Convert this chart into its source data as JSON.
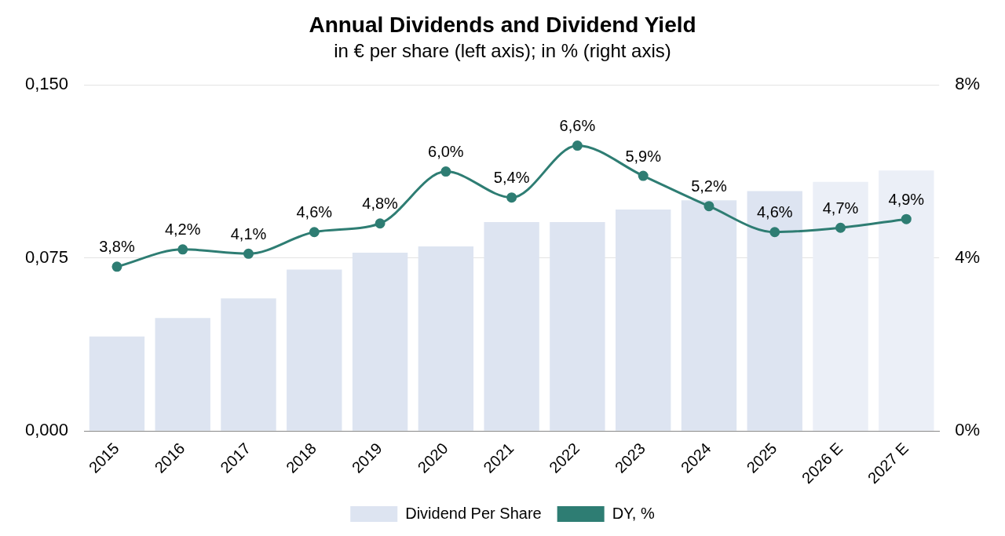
{
  "chart_data": {
    "type": "bar",
    "title": "Annual Dividends and Dividend Yield",
    "subtitle": "in € per share (left axis); in % (right axis)",
    "categories": [
      "2015",
      "2016",
      "2017",
      "2018",
      "2019",
      "2020",
      "2021",
      "2022",
      "2023",
      "2024",
      "2025",
      "2026 E",
      "2027 E"
    ],
    "series": [
      {
        "name": "Dividend Per Share",
        "color": "#dde4f1",
        "colors": [
          "#dde4f1",
          "#dde4f1",
          "#dde4f1",
          "#dde4f1",
          "#dde4f1",
          "#dde4f1",
          "#dde4f1",
          "#dde4f1",
          "#dde4f1",
          "#dde4f1",
          "#dde4f1",
          "#ebeff7",
          "#ebeff7"
        ],
        "values": [
          0.041,
          0.049,
          0.0575,
          0.07,
          0.0773,
          0.08,
          0.0906,
          0.0906,
          0.096,
          0.1,
          0.104,
          0.108,
          0.113
        ]
      },
      {
        "name": "DY, %",
        "type": "line",
        "axis": "y2",
        "color": "#2e7d73",
        "values": [
          3.8,
          4.2,
          4.1,
          4.6,
          4.8,
          6.0,
          5.4,
          6.6,
          5.9,
          5.2,
          4.6,
          4.7,
          4.9
        ],
        "value_labels": [
          "3,8%",
          "4,2%",
          "4,1%",
          "4,6%",
          "4,8%",
          "6,0%",
          "5,4%",
          "6,6%",
          "5,9%",
          "5,2%",
          "4,6%",
          "4,7%",
          "4,9%"
        ]
      }
    ],
    "ylim": [
      0,
      0.15
    ],
    "yticks": [
      {
        "value": 0,
        "label": "0,000"
      },
      {
        "value": 0.075,
        "label": "0,075"
      },
      {
        "value": 0.15,
        "label": "0,150"
      }
    ],
    "y2lim": [
      0,
      8
    ],
    "y2ticks": [
      {
        "value": 0,
        "label": "0%"
      },
      {
        "value": 4,
        "label": "4%"
      },
      {
        "value": 8,
        "label": "8%"
      }
    ],
    "grid": "y",
    "legend": "bottom",
    "marker": "circle",
    "line_style": "solid"
  }
}
